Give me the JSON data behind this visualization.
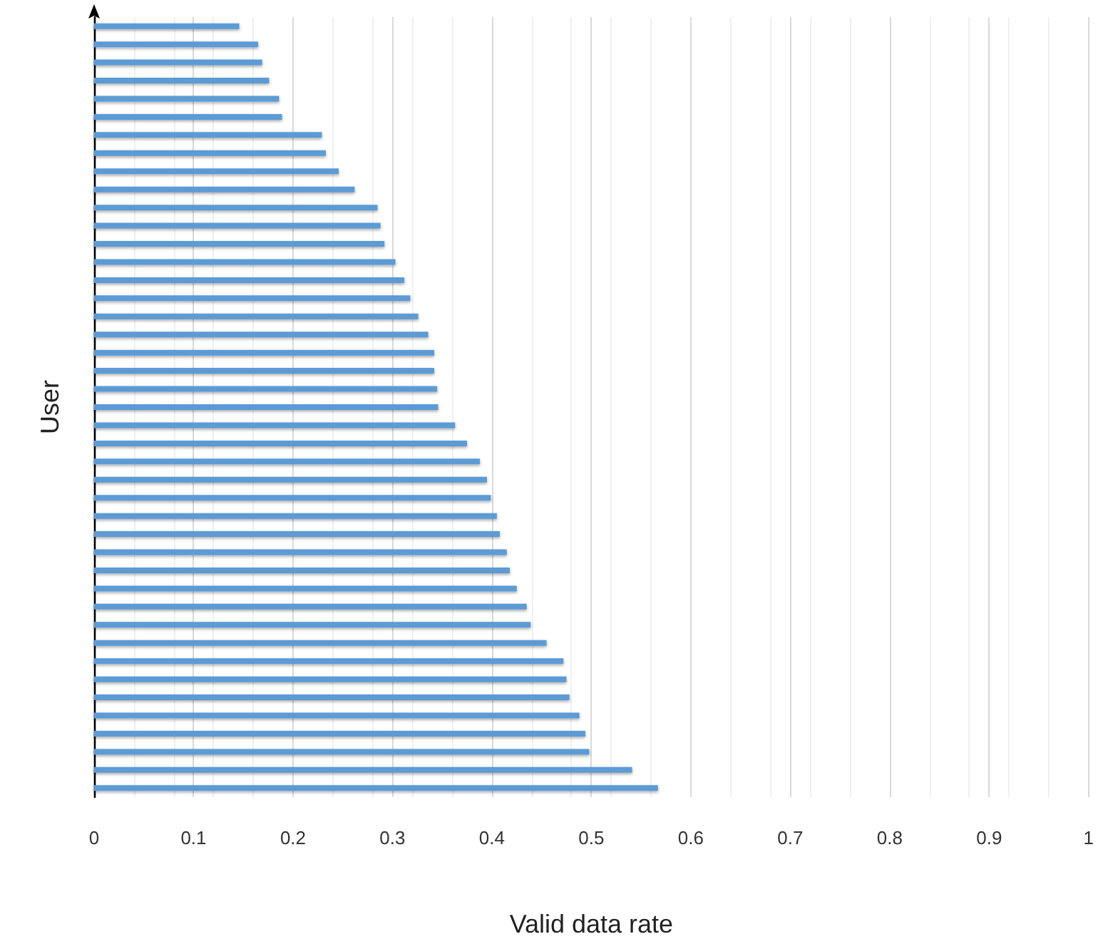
{
  "chart_data": {
    "type": "bar",
    "orientation": "horizontal",
    "xlabel": "Valid data rate",
    "ylabel": "User",
    "categories": [
      null,
      null,
      null,
      null,
      null,
      null,
      null,
      null,
      null,
      null,
      null,
      null,
      null,
      null,
      null,
      null,
      null,
      null,
      null,
      null,
      null,
      null,
      null,
      null,
      null,
      null,
      null,
      null,
      null,
      null,
      null,
      null,
      null,
      null,
      null,
      null,
      null,
      null,
      null,
      null,
      null,
      null,
      null
    ],
    "values": [
      0.146,
      0.165,
      0.169,
      0.176,
      0.186,
      0.189,
      0.229,
      0.233,
      0.246,
      0.262,
      0.285,
      0.288,
      0.292,
      0.303,
      0.312,
      0.318,
      0.326,
      0.336,
      0.342,
      0.342,
      0.345,
      0.346,
      0.363,
      0.375,
      0.388,
      0.395,
      0.399,
      0.405,
      0.408,
      0.415,
      0.418,
      0.425,
      0.435,
      0.439,
      0.455,
      0.472,
      0.475,
      0.478,
      0.488,
      0.494,
      0.498,
      0.541,
      0.567
    ],
    "color": "#5b9bd5",
    "xlim": [
      0,
      1
    ],
    "xticks": [
      0,
      0.1,
      0.2,
      0.3,
      0.4,
      0.5,
      0.6,
      0.7,
      0.8,
      0.9,
      1
    ],
    "grid": "x",
    "tick_labels": "x"
  }
}
